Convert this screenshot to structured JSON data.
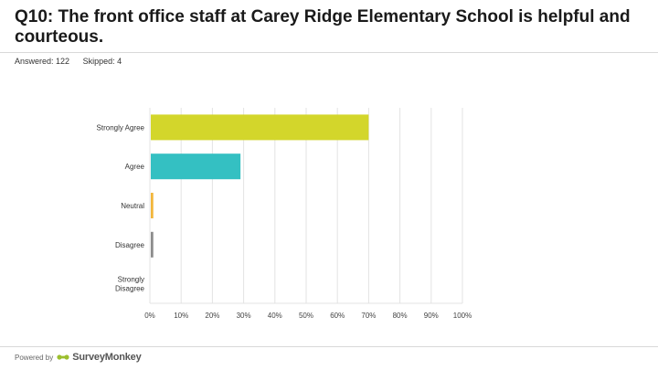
{
  "title": "Q10: The front office staff at Carey Ridge Elementary School is helpful and courteous.",
  "answered_label": "Answered: 122",
  "skipped_label": "Skipped: 4",
  "footer": {
    "powered_by": "Powered by",
    "brand": "SurveyMonkey"
  },
  "colors": {
    "strongly_agree": "#d3d62b",
    "agree": "#34c0c2",
    "neutral": "#f2b63b",
    "disagree": "#8c8c8c",
    "strongly_disagree": "#6e6e6e",
    "grid": "#e3e3e3",
    "logo": "#9cbf2e"
  },
  "chart_data": {
    "type": "bar",
    "orientation": "horizontal",
    "categories": [
      "Strongly Agree",
      "Agree",
      "Neutral",
      "Disagree",
      "Strongly Disagree"
    ],
    "values": [
      69.7,
      28.7,
      0.8,
      0.8,
      0
    ],
    "xlim": [
      0,
      100
    ],
    "xticks": [
      "0%",
      "10%",
      "20%",
      "30%",
      "40%",
      "50%",
      "60%",
      "70%",
      "80%",
      "90%",
      "100%"
    ],
    "grid": true
  }
}
